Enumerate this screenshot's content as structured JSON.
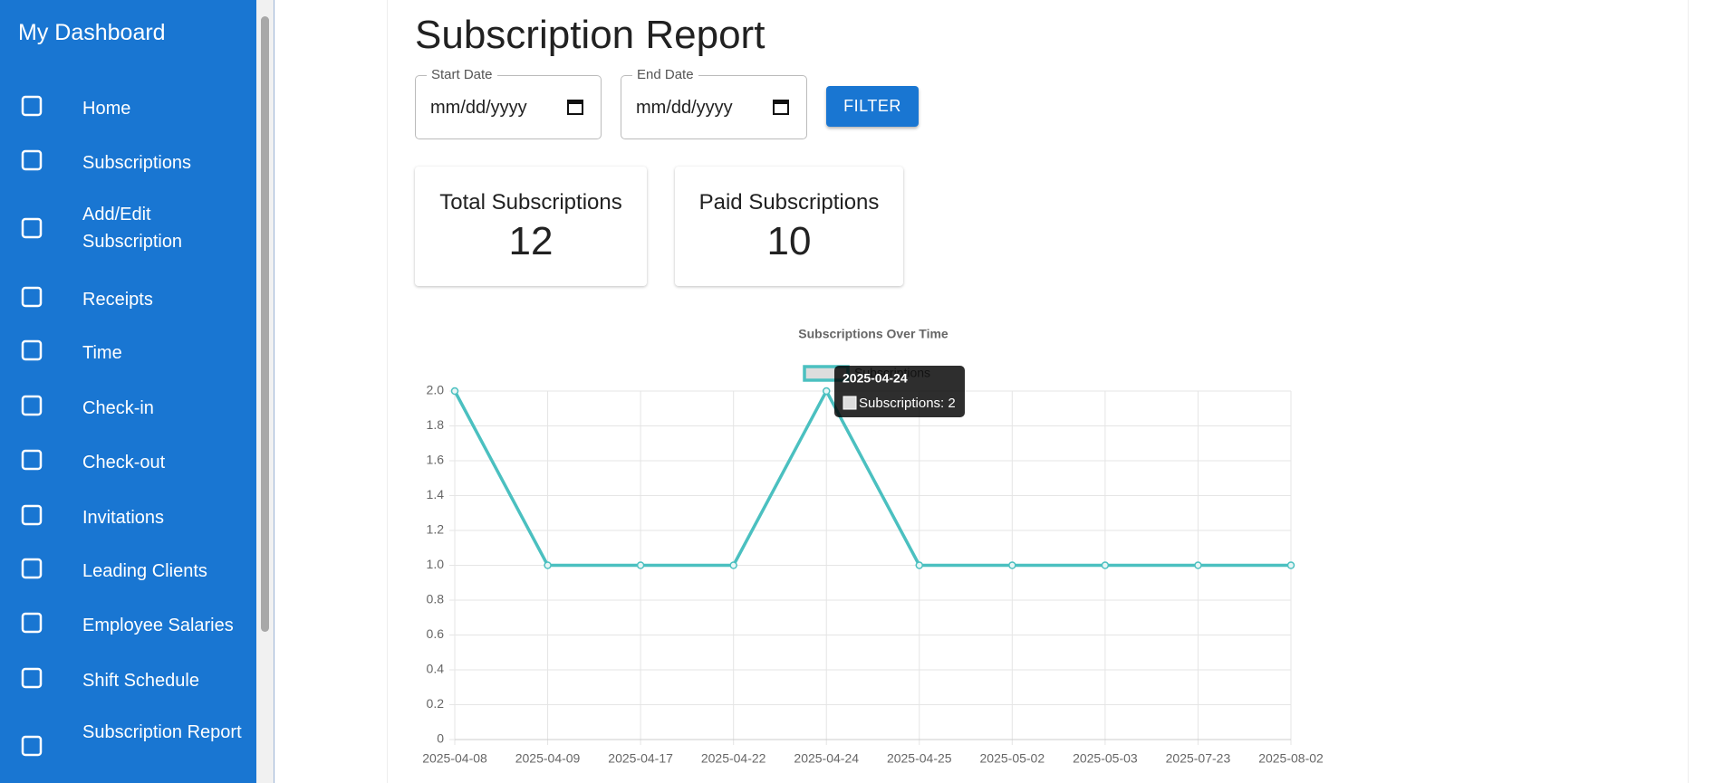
{
  "sidebar": {
    "title": "My Dashboard",
    "items": [
      "Home",
      "Subscriptions",
      "Add/Edit Subscription",
      "Receipts",
      "Time",
      "Check-in",
      "Check-out",
      "Invitations",
      "Leading Clients",
      "Employee Salaries",
      "Shift Schedule",
      "Subscription Report"
    ]
  },
  "header": {
    "title": "Subscription Report"
  },
  "filters": {
    "start_label": "Start Date",
    "start_placeholder": "mm/dd/yyyy",
    "end_label": "End Date",
    "end_placeholder": "mm/dd/yyyy",
    "button": "FILTER"
  },
  "cards": [
    {
      "label": "Total Subscriptions",
      "value": 12
    },
    {
      "label": "Paid Subscriptions",
      "value": 10
    }
  ],
  "chart_data": {
    "type": "line",
    "title": "Subscriptions Over Time",
    "categories": [
      "2025-04-08",
      "2025-04-09",
      "2025-04-17",
      "2025-04-22",
      "2025-04-24",
      "2025-04-25",
      "2025-05-02",
      "2025-05-03",
      "2025-07-23",
      "2025-08-02"
    ],
    "series": [
      {
        "name": "Subscriptions",
        "color": "#4bc0c0",
        "values": [
          2,
          1,
          1,
          1,
          2,
          1,
          1,
          1,
          1,
          1
        ]
      }
    ],
    "ylim": [
      0,
      2
    ],
    "yticks": [
      0,
      0.2,
      0.4,
      0.6,
      0.8,
      {
        "value": 1,
        "label": "1.0"
      },
      1.2,
      1.4,
      1.6,
      1.8,
      {
        "value": 2,
        "label": "2.0"
      }
    ],
    "grid": true,
    "tooltip": {
      "title": "2025-04-24",
      "body": "Subscriptions: 2"
    }
  }
}
